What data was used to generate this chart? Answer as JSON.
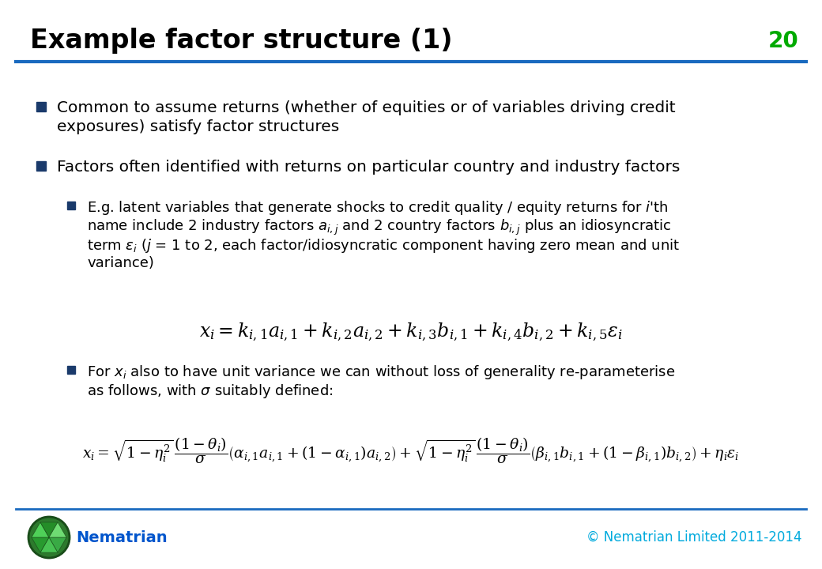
{
  "title": "Example factor structure (1)",
  "slide_number": "20",
  "title_color": "#000000",
  "title_fontsize": 22,
  "slide_number_color": "#00aa00",
  "background_color": "#ffffff",
  "separator_color": "#1a6abf",
  "bullet_color": "#1a3a6b",
  "text_color": "#000000",
  "footer_brand_color": "#0055cc",
  "footer_copy_color": "#00aadd",
  "footer_brand": "Nematrian",
  "footer_copyright": "© Nematrian Limited 2011-2014",
  "eq1": "$x_i = k_{i,1}a_{i,1} + k_{i,2}a_{i,2} + k_{i,3}b_{i,1} + k_{i,4}b_{i,2} + k_{i,5}\\varepsilon_i$",
  "eq2": "$x_i = \\sqrt{1-\\eta_i^2}\\,\\dfrac{(1-\\theta_i)}{\\sigma}\\left(\\alpha_{i,1}a_{i,1} + \\left(1-\\alpha_{i,1}\\right)a_{i,2}\\right) + \\sqrt{1-\\eta_i^2}\\,\\dfrac{(1-\\theta_i)}{\\sigma}\\left(\\beta_{i,1}b_{i,1} + \\left(1-\\beta_{i,1}\\right)b_{i,2}\\right) + \\eta_i\\varepsilon_i$"
}
